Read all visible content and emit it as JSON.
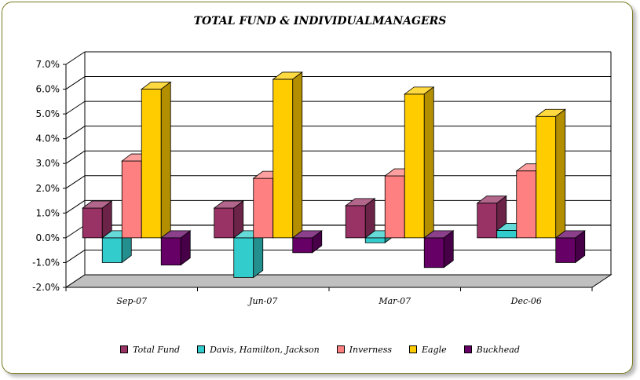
{
  "chart_data": {
    "type": "bar",
    "title": "TOTAL FUND  & INDIVIDUALMANAGERS",
    "categories": [
      "Sep-07",
      "Jun-07",
      "Mar-07",
      "Dec-06"
    ],
    "ylim": [
      -2.0,
      7.0
    ],
    "yticks": [
      {
        "value": 7.0,
        "label": "7.0%"
      },
      {
        "value": 6.0,
        "label": "6.0%"
      },
      {
        "value": 5.0,
        "label": "5.0%"
      },
      {
        "value": 4.0,
        "label": "4.0%"
      },
      {
        "value": 3.0,
        "label": "3.0%"
      },
      {
        "value": 2.0,
        "label": "2.0%"
      },
      {
        "value": 1.0,
        "label": "1.0%"
      },
      {
        "value": 0.0,
        "label": "0.0%"
      },
      {
        "value": -1.0,
        "label": "-1.0%"
      },
      {
        "value": -2.0,
        "label": "-2.0%"
      }
    ],
    "grid": true,
    "three_d": true,
    "legend_position": "bottom",
    "series": [
      {
        "name": "Total Fund",
        "color": "#993366",
        "values": [
          1.2,
          1.2,
          1.3,
          1.4
        ]
      },
      {
        "name": "Davis, Hamilton, Jackson",
        "color": "#33cccc",
        "values": [
          -1.0,
          -1.6,
          -0.2,
          0.3
        ]
      },
      {
        "name": "Inverness",
        "color": "#ff8080",
        "values": [
          3.1,
          2.4,
          2.5,
          2.7
        ]
      },
      {
        "name": "Eagle",
        "color": "#ffcc00",
        "values": [
          6.0,
          6.4,
          5.8,
          4.9
        ]
      },
      {
        "name": "Buckhead",
        "color": "#660066",
        "values": [
          -1.1,
          -0.6,
          -1.2,
          -1.0
        ]
      }
    ]
  }
}
